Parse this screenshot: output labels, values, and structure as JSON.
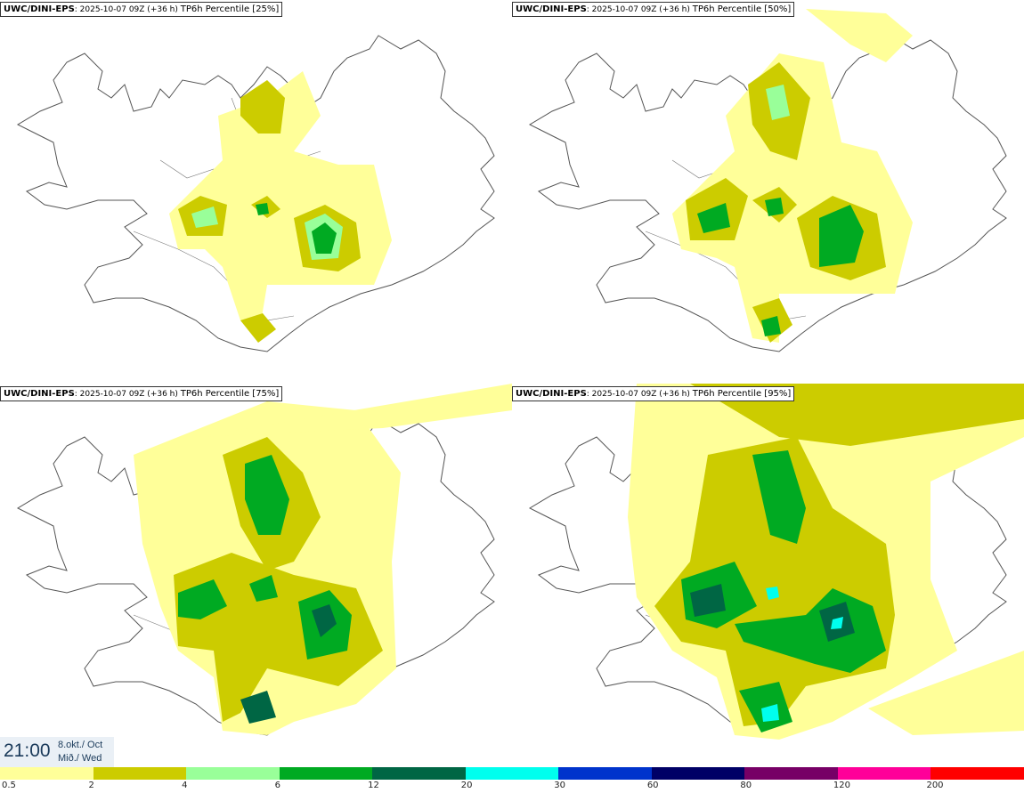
{
  "panels": [
    {
      "model": "UWC/DINI-EPS",
      "run": ": 2025-10-07 09Z (+36 h)",
      "field": "TP6h Percentile [25%]"
    },
    {
      "model": "UWC/DINI-EPS",
      "run": ": 2025-10-07 09Z (+36 h)",
      "field": "TP6h Percentile [50%]"
    },
    {
      "model": "UWC/DINI-EPS",
      "run": ": 2025-10-07 09Z (+36 h)",
      "field": "TP6h Percentile [75%]"
    },
    {
      "model": "UWC/DINI-EPS",
      "run": ": 2025-10-07 09Z (+36 h)",
      "field": "TP6h Percentile [95%]"
    }
  ],
  "timebox": {
    "time": "21:00",
    "date_line1": "8.okt./ Oct",
    "date_line2": "Mið./ Wed"
  },
  "legend": {
    "labels": [
      "0.5",
      "2",
      "4",
      "6",
      "12",
      "20",
      "30",
      "60",
      "80",
      "120",
      "200"
    ],
    "colors": [
      "#ffff99",
      "#cccc00",
      "#99ff99",
      "#00aa22",
      "#006644",
      "#00ffee",
      "#0033cc",
      "#000066",
      "#770066",
      "#ff0099",
      "#ff0000"
    ]
  },
  "colors": {
    "land_outline": "#555555",
    "roads": "#777777"
  }
}
